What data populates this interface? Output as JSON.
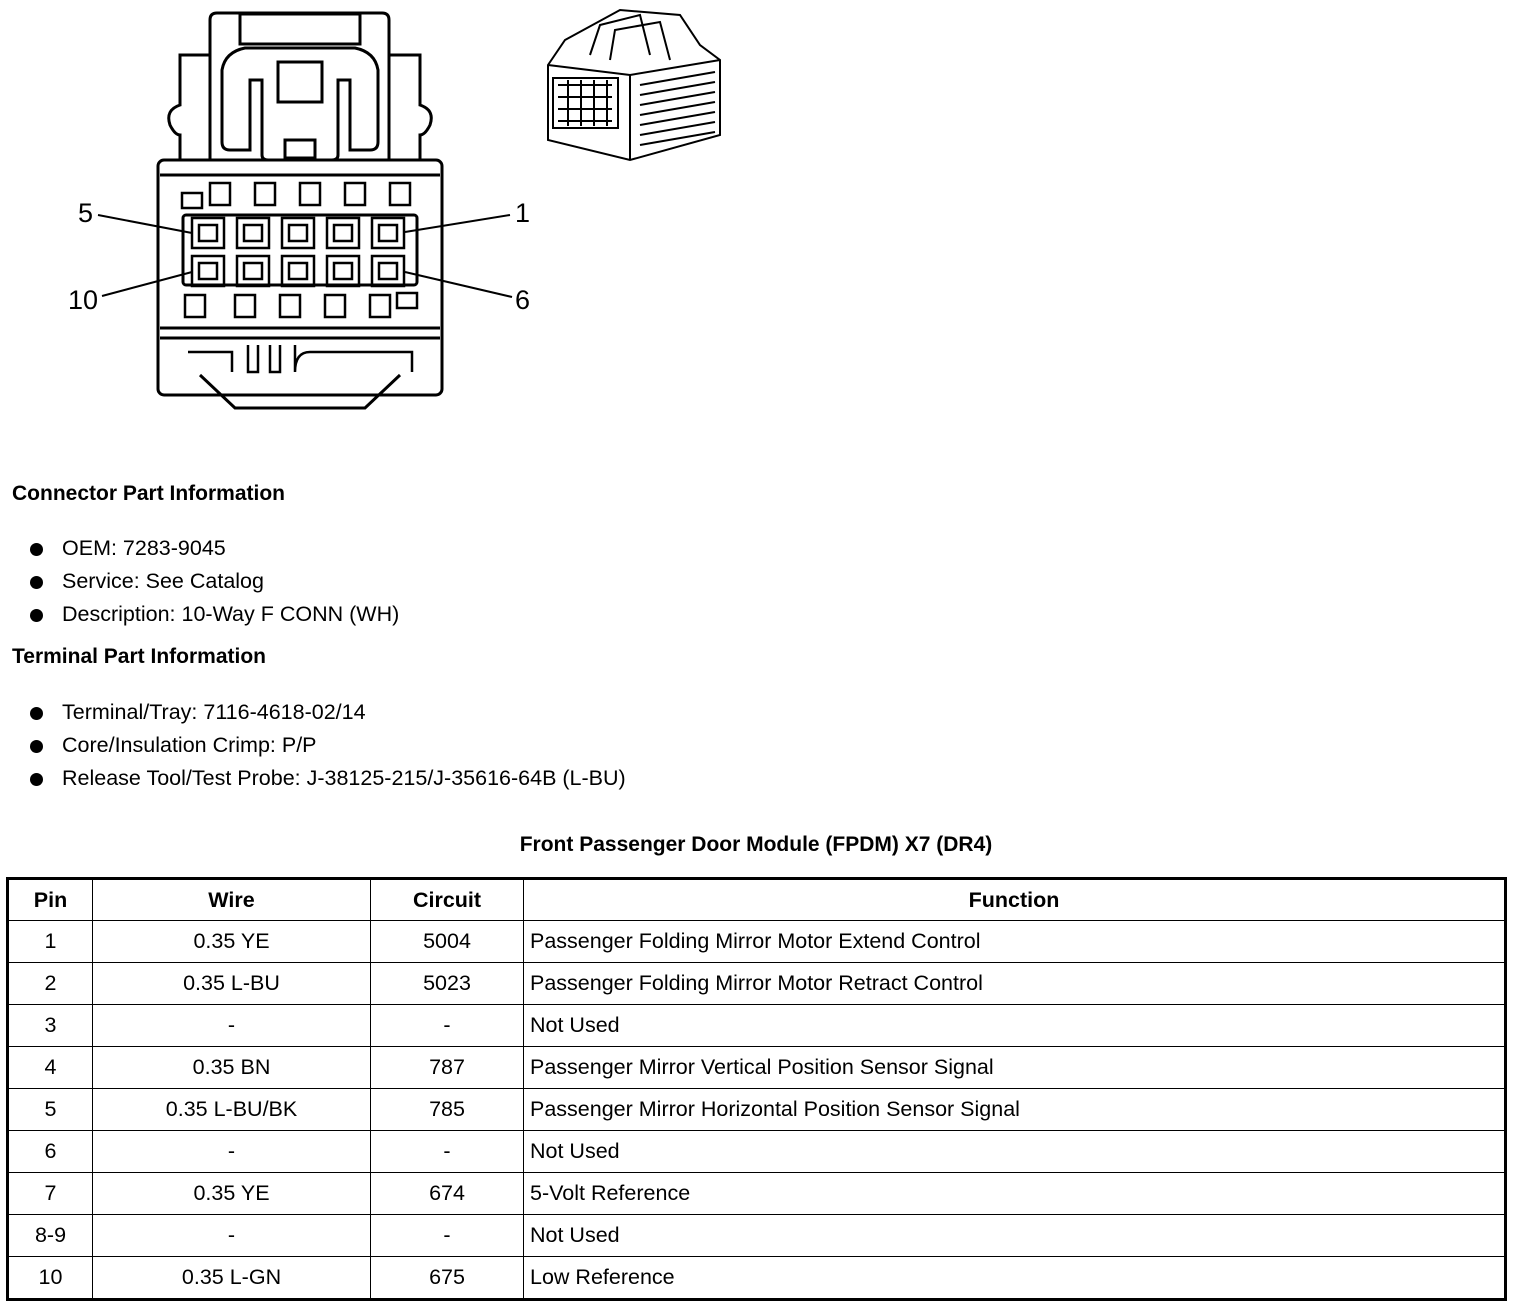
{
  "diagram": {
    "pin_labels": [
      "5",
      "1",
      "10",
      "6"
    ]
  },
  "connector_info": {
    "heading": "Connector Part Information",
    "items": [
      "OEM: 7283-9045",
      "Service: See Catalog",
      "Description: 10-Way F CONN (WH)"
    ]
  },
  "terminal_info": {
    "heading": "Terminal Part Information",
    "items": [
      "Terminal/Tray: 7116-4618-02/14",
      "Core/Insulation Crimp: P/P",
      "Release Tool/Test Probe: J-38125-215/J-35616-64B (L-BU)"
    ]
  },
  "table": {
    "title": "Front Passenger Door Module (FPDM) X7 (DR4)",
    "headers": [
      "Pin",
      "Wire",
      "Circuit",
      "Function"
    ],
    "rows": [
      [
        "1",
        "0.35 YE",
        "5004",
        "Passenger Folding Mirror Motor Extend Control"
      ],
      [
        "2",
        "0.35 L-BU",
        "5023",
        "Passenger Folding Mirror Motor Retract Control"
      ],
      [
        "3",
        "-",
        "-",
        "Not Used"
      ],
      [
        "4",
        "0.35 BN",
        "787",
        "Passenger Mirror Vertical Position Sensor Signal"
      ],
      [
        "5",
        "0.35 L-BU/BK",
        "785",
        "Passenger Mirror Horizontal Position Sensor Signal"
      ],
      [
        "6",
        "-",
        "-",
        "Not Used"
      ],
      [
        "7",
        "0.35 YE",
        "674",
        "5-Volt Reference"
      ],
      [
        "8-9",
        "-",
        "-",
        "Not Used"
      ],
      [
        "10",
        "0.35 L-GN",
        "675",
        "Low Reference"
      ]
    ]
  }
}
